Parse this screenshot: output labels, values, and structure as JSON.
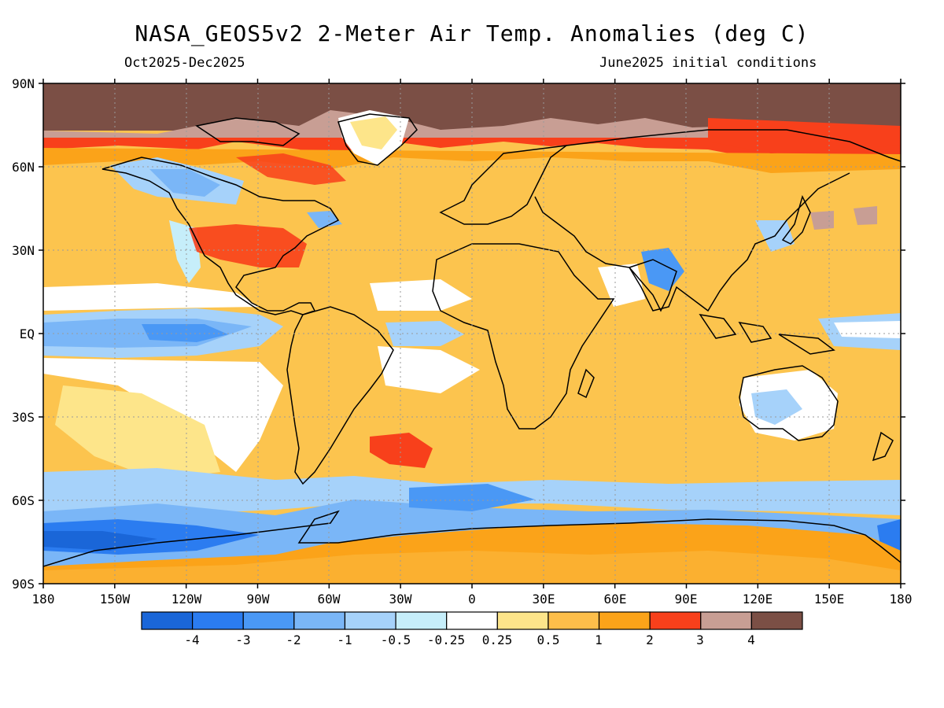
{
  "header": {
    "title": "NASA_GEOS5v2 2-Meter Air Temp. Anomalies (deg C)",
    "period": "Oct2025-Dec2025",
    "init": "June2025 initial conditions"
  },
  "axes": {
    "lat_labels": [
      "90N",
      "60N",
      "30N",
      "EQ",
      "30S",
      "60S",
      "90S"
    ],
    "lon_labels": [
      "180",
      "150W",
      "120W",
      "90W",
      "60W",
      "30W",
      "0",
      "30E",
      "60E",
      "90E",
      "120E",
      "150E",
      "180"
    ]
  },
  "legend": {
    "colors": [
      "#1a66d8",
      "#2b7cf0",
      "#4a98f5",
      "#7ab6f7",
      "#a6d2fa",
      "#c6eefa",
      "#ffffff",
      "#fde58a",
      "#fdbe4a",
      "#fba319",
      "#f8401b",
      "#c89e94",
      "#7b4f45"
    ],
    "labels": [
      "-4",
      "-3",
      "-2",
      "-1",
      "-0.5",
      "-0.25",
      "0.25",
      "0.5",
      "1",
      "2",
      "3",
      "4"
    ]
  },
  "colors": {
    "background_anomaly": "#fcc44e",
    "frame": "#000000"
  }
}
